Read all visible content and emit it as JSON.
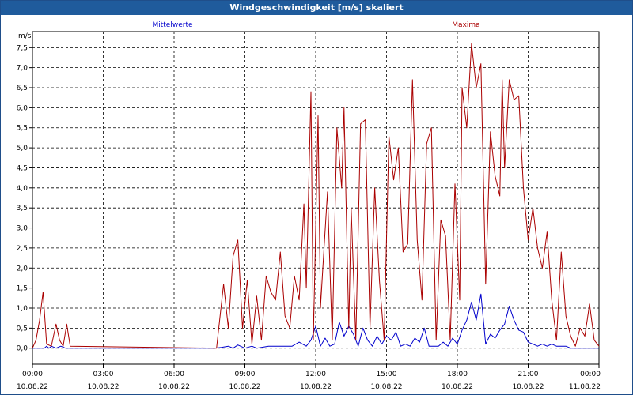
{
  "window": {
    "title": "Windgeschwindigkeit [m/s] skaliert"
  },
  "chart_data": {
    "type": "line",
    "title": "Windgeschwindigkeit [m/s] skaliert",
    "ylabel": "m/s",
    "xlabel": "",
    "ylim": [
      -0.4,
      7.9
    ],
    "xlim": [
      0,
      24
    ],
    "grid": true,
    "y_ticks": [
      "0,0",
      "0,5",
      "1,0",
      "1,5",
      "2,0",
      "2,5",
      "3,0",
      "3,5",
      "4,0",
      "4,5",
      "5,0",
      "5,5",
      "6,0",
      "6,5",
      "7,0",
      "7,5"
    ],
    "x_ticks": [
      {
        "time": "00:00",
        "date": "10.08.22"
      },
      {
        "time": "03:00",
        "date": "10.08.22"
      },
      {
        "time": "06:00",
        "date": "10.08.22"
      },
      {
        "time": "09:00",
        "date": "10.08.22"
      },
      {
        "time": "12:00",
        "date": "10.08.22"
      },
      {
        "time": "15:00",
        "date": "10.08.22"
      },
      {
        "time": "18:00",
        "date": "10.08.22"
      },
      {
        "time": "21:00",
        "date": "10.08.22"
      },
      {
        "time": "00:00",
        "date": "11.08.22"
      }
    ],
    "series": [
      {
        "name": "Mittelwerte",
        "color": "#0000cc",
        "x": [
          0,
          0.5,
          0.6,
          0.7,
          0.8,
          1.0,
          1.2,
          1.4,
          7.7,
          8.0,
          8.3,
          8.5,
          8.7,
          9.0,
          9.3,
          9.5,
          10.0,
          10.5,
          11.0,
          11.3,
          11.6,
          11.8,
          12.0,
          12.2,
          12.4,
          12.6,
          12.8,
          13.0,
          13.2,
          13.4,
          13.6,
          13.8,
          14.0,
          14.2,
          14.4,
          14.6,
          14.8,
          15.0,
          15.2,
          15.4,
          15.6,
          15.8,
          16.0,
          16.2,
          16.4,
          16.6,
          16.8,
          17.0,
          17.2,
          17.4,
          17.6,
          17.8,
          18.0,
          18.2,
          18.4,
          18.6,
          18.8,
          19.0,
          19.2,
          19.4,
          19.6,
          19.8,
          20.0,
          20.2,
          20.4,
          20.6,
          20.8,
          21.0,
          21.2,
          21.4,
          21.6,
          21.8,
          22.0,
          22.2,
          22.4,
          22.6,
          22.8,
          23.0,
          23.5,
          24.0
        ],
        "y": [
          0,
          0,
          0.05,
          0,
          0.05,
          0,
          0.05,
          0,
          0,
          0.02,
          0.05,
          0,
          0.08,
          0,
          0.05,
          0,
          0.05,
          0.05,
          0.05,
          0.15,
          0.05,
          0.2,
          0.55,
          0.05,
          0.25,
          0.05,
          0.1,
          0.65,
          0.3,
          0.55,
          0.35,
          0.05,
          0.5,
          0.2,
          0.05,
          0.3,
          0.1,
          0.3,
          0.2,
          0.4,
          0.05,
          0.1,
          0.05,
          0.25,
          0.15,
          0.5,
          0.05,
          0.05,
          0.05,
          0.15,
          0.05,
          0.25,
          0.1,
          0.45,
          0.7,
          1.15,
          0.7,
          1.35,
          0.1,
          0.35,
          0.25,
          0.45,
          0.6,
          1.05,
          0.7,
          0.45,
          0.4,
          0.15,
          0.1,
          0.05,
          0.1,
          0.05,
          0.1,
          0.05,
          0.05,
          0.05,
          0,
          0,
          0,
          0
        ]
      },
      {
        "name": "Maxima",
        "color": "#aa0000",
        "x": [
          0,
          0.15,
          0.3,
          0.45,
          0.6,
          0.8,
          1.0,
          1.15,
          1.3,
          1.45,
          1.6,
          7.8,
          8.1,
          8.3,
          8.5,
          8.7,
          8.9,
          9.1,
          9.3,
          9.5,
          9.7,
          9.9,
          10.1,
          10.3,
          10.5,
          10.7,
          10.9,
          11.1,
          11.3,
          11.5,
          11.6,
          11.8,
          11.9,
          12.1,
          12.2,
          12.3,
          12.5,
          12.7,
          12.9,
          13.1,
          13.2,
          13.4,
          13.5,
          13.7,
          13.9,
          14.1,
          14.3,
          14.5,
          14.7,
          14.9,
          15.1,
          15.3,
          15.5,
          15.7,
          15.9,
          16.1,
          16.3,
          16.5,
          16.7,
          16.9,
          17.1,
          17.3,
          17.5,
          17.7,
          17.9,
          18.1,
          18.2,
          18.4,
          18.6,
          18.8,
          19.0,
          19.2,
          19.4,
          19.6,
          19.8,
          19.9,
          20.0,
          20.2,
          20.4,
          20.6,
          20.8,
          21.0,
          21.2,
          21.4,
          21.6,
          21.8,
          22.0,
          22.2,
          22.4,
          22.6,
          22.8,
          23.0,
          23.2,
          23.4,
          23.6,
          23.8,
          24.0
        ],
        "y": [
          0,
          0.2,
          0.7,
          1.4,
          0.1,
          0.05,
          0.6,
          0.2,
          0.05,
          0.6,
          0.05,
          0,
          1.6,
          0.5,
          2.3,
          2.7,
          0.5,
          1.7,
          0.1,
          1.3,
          0.2,
          1.8,
          1.4,
          1.2,
          2.4,
          0.8,
          0.5,
          1.8,
          1.2,
          3.6,
          1.5,
          6.4,
          0.2,
          5.8,
          1.0,
          2.0,
          3.9,
          0.2,
          5.5,
          4.0,
          6.0,
          0.5,
          3.5,
          0.2,
          5.6,
          5.7,
          0.5,
          4.0,
          1.7,
          0.2,
          5.3,
          4.2,
          5.0,
          2.4,
          2.6,
          6.7,
          2.7,
          1.2,
          5.1,
          5.5,
          0.2,
          3.2,
          2.8,
          0.2,
          4.1,
          1.2,
          6.5,
          5.5,
          7.6,
          6.5,
          7.1,
          1.6,
          5.4,
          4.3,
          3.8,
          6.7,
          4.5,
          6.7,
          6.2,
          6.3,
          4.0,
          2.7,
          3.5,
          2.5,
          2.0,
          2.9,
          1.2,
          0.2,
          2.4,
          0.8,
          0.3,
          0.05,
          0.5,
          0.3,
          1.1,
          0.2,
          0.05
        ]
      }
    ]
  }
}
